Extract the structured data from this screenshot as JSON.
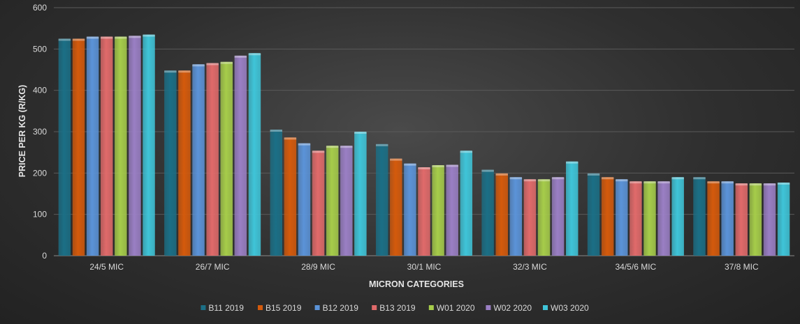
{
  "chart_data": {
    "type": "bar",
    "title": "",
    "xlabel": "MICRON CATEGORIES",
    "ylabel": "PRICE PER KG (R/KG)",
    "ylim": [
      0,
      600
    ],
    "yticks": [
      0,
      100,
      200,
      300,
      400,
      500,
      600
    ],
    "grid": true,
    "legend_position": "bottom",
    "categories": [
      "24/5 MIC",
      "26/7 MIC",
      "28/9 MIC",
      "30/1 MIC",
      "32/3 MIC",
      "34/5/6 MIC",
      "37/8 MIC"
    ],
    "series": [
      {
        "name": "B11 2019",
        "color": "#1b6f86",
        "values": [
          525,
          448,
          305,
          270,
          208,
          199,
          190
        ]
      },
      {
        "name": "B15 2019",
        "color": "#d45a0c",
        "values": [
          525,
          448,
          286,
          235,
          199,
          190,
          180
        ]
      },
      {
        "name": "B12 2019",
        "color": "#5b93d8",
        "values": [
          530,
          463,
          272,
          223,
          190,
          185,
          180
        ]
      },
      {
        "name": "B13 2019",
        "color": "#e06a6a",
        "values": [
          530,
          466,
          254,
          214,
          185,
          180,
          175
        ]
      },
      {
        "name": "W01 2020",
        "color": "#a6cc4a",
        "values": [
          530,
          469,
          266,
          219,
          185,
          180,
          175
        ]
      },
      {
        "name": "W02 2020",
        "color": "#9a7fc4",
        "values": [
          532,
          484,
          266,
          220,
          190,
          180,
          175
        ]
      },
      {
        "name": "W03 2020",
        "color": "#3fc4d8",
        "values": [
          535,
          490,
          300,
          254,
          228,
          190,
          177
        ]
      }
    ]
  }
}
